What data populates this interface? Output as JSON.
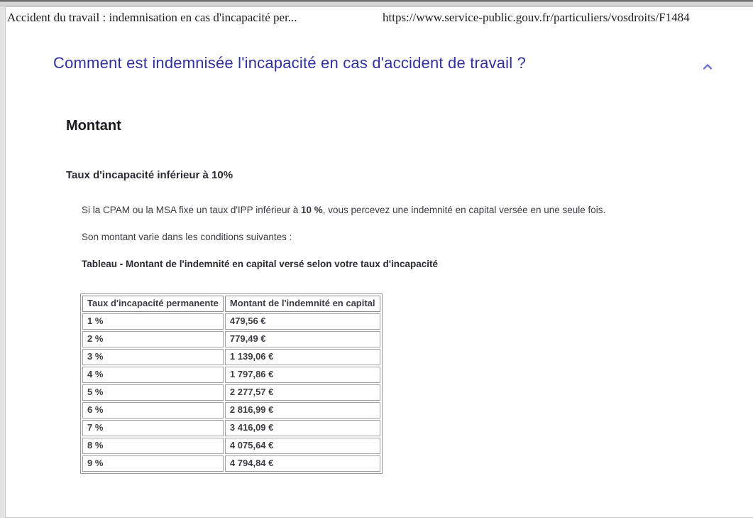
{
  "print_header": {
    "title": "Accident du travail : indemnisation en cas d'incapacité per...",
    "url": "https://www.service-public.gouv.fr/particuliers/vosdroits/F1484"
  },
  "article": {
    "heading": "Comment est indemnisée l'incapacité en cas d'accident de travail ?",
    "section_title": "Montant",
    "subsection_title": "Taux d'incapacité inférieur à 10%",
    "paragraph_capital_prefix": "Si la CPAM ou la MSA fixe un taux d'IPP inférieur à ",
    "paragraph_capital_bold": "10 %",
    "paragraph_capital_suffix": ", vous percevez une indemnité en capital versée en une seule fois.",
    "paragraph_conditions": "Son montant varie dans les conditions suivantes :",
    "table_caption": "Tableau - Montant de l'indemnité en capital versé selon votre taux d'incapacité"
  },
  "table": {
    "headers": [
      "Taux d'incapacité permanente",
      "Montant de l'indemnité en capital"
    ],
    "rows": [
      [
        "1 %",
        "479,56 €"
      ],
      [
        "2 %",
        "779,49 €"
      ],
      [
        "3 %",
        "1 139,06 €"
      ],
      [
        "4 %",
        "1 797,86 €"
      ],
      [
        "5 %",
        "2 277,57 €"
      ],
      [
        "6 %",
        "2 816,99 €"
      ],
      [
        "7 %",
        "3 416,09 €"
      ],
      [
        "8 %",
        "4 075,64 €"
      ],
      [
        "9 %",
        "4 794,84 €"
      ]
    ]
  },
  "icons": {
    "collapse_section": "chevron-up-icon"
  },
  "colors": {
    "heading_blue": "#30309f",
    "chevron_blue": "#7575da",
    "border_gray": "#979797"
  }
}
